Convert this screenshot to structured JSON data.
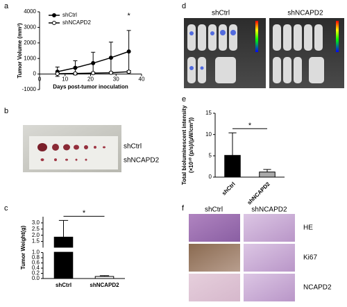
{
  "panels": {
    "a": "a",
    "b": "b",
    "c": "c",
    "d": "d",
    "e": "e",
    "f": "f",
    "b_labels": [
      "shCtrl",
      "shNCAPD2"
    ],
    "d_labels": [
      "shCtrl",
      "shNCAPD2"
    ],
    "f_columns": [
      "shCtrl",
      "shNCAPD2"
    ],
    "f_rows": [
      "HE",
      "Ki67",
      "NCAPD2"
    ]
  },
  "chart_data": [
    {
      "type": "line",
      "ylabel": "Tumor Volume (mm³)",
      "xlabel": "Days post-tumor inoculation",
      "xlim": [
        0,
        40
      ],
      "xticks": [
        0,
        10,
        20,
        30,
        40
      ],
      "ylim": [
        -1000,
        4000
      ],
      "yticks": [
        -1000,
        0,
        1000,
        2000,
        3000,
        4000
      ],
      "annotation": "*",
      "annotation_x": 35,
      "series": [
        {
          "name": "shCtrl",
          "color": "#000000",
          "filled": true,
          "x": [
            7,
            14,
            21,
            28,
            35
          ],
          "values": [
            150,
            400,
            700,
            1050,
            1450
          ],
          "errors": [
            300,
            450,
            700,
            1000,
            1350
          ]
        },
        {
          "name": "shNCAPD2",
          "color": "#000000",
          "filled": false,
          "x": [
            7,
            14,
            21,
            28,
            35
          ],
          "values": [
            20,
            40,
            60,
            80,
            150
          ],
          "errors": [
            40,
            50,
            60,
            70,
            80
          ]
        }
      ]
    },
    {
      "type": "bar",
      "ylabel": "Tumor Weight(g)",
      "categories": [
        "shCtrl",
        "shNCAPD2"
      ],
      "values": [
        1.85,
        0.08
      ],
      "errors": [
        1.35,
        0.03
      ],
      "colors": [
        "#000000",
        "#ffffff"
      ],
      "ylim": [
        0,
        3.5
      ],
      "ybreak": 1,
      "yticks": [
        {
          "value": 0,
          "label": "0.0"
        },
        0.2,
        0.4,
        0.6,
        0.8,
        {
          "value": 1,
          "label": "1.0"
        },
        1.5,
        {
          "value": 2,
          "label": "2.0"
        },
        2.5,
        {
          "value": 3,
          "label": "3.0"
        }
      ],
      "annotation": "*"
    },
    {
      "type": "bar",
      "ylabel": [
        "Total bioluminescent intensity",
        "(×10¹⁰ (p/s)/(µW/cm²))"
      ],
      "categories": [
        "shCtrl",
        "shNCAPD2"
      ],
      "values": [
        5.1,
        1.2
      ],
      "errors": [
        5.3,
        0.6
      ],
      "colors": [
        "#000000",
        "#aaaaaa"
      ],
      "ylim": [
        0,
        15
      ],
      "yticks": [
        0,
        5,
        10,
        15
      ],
      "annotation": "*",
      "rotate_labels": true
    }
  ]
}
